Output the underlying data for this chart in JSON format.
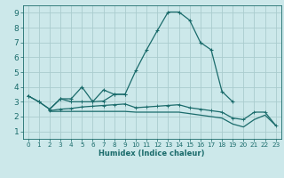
{
  "xlabel": "Humidex (Indice chaleur)",
  "xlim": [
    -0.5,
    23.5
  ],
  "ylim": [
    0.5,
    9.5
  ],
  "xticks": [
    0,
    1,
    2,
    3,
    4,
    5,
    6,
    7,
    8,
    9,
    10,
    11,
    12,
    13,
    14,
    15,
    16,
    17,
    18,
    19,
    20,
    21,
    22,
    23
  ],
  "yticks": [
    1,
    2,
    3,
    4,
    5,
    6,
    7,
    8,
    9
  ],
  "bg_color": "#cce8ea",
  "grid_color": "#aaccce",
  "line_color": "#1a6b6b",
  "series": [
    [
      3.4,
      3.0,
      2.5,
      3.2,
      3.2,
      4.0,
      3.0,
      3.8,
      3.5,
      3.5,
      5.1,
      6.5,
      7.8,
      9.05,
      9.05,
      8.5,
      7.0,
      6.5,
      3.7,
      3.0,
      null,
      null,
      null,
      null
    ],
    [
      3.4,
      3.0,
      2.5,
      3.2,
      3.0,
      3.0,
      3.0,
      3.05,
      3.5,
      3.5,
      null,
      null,
      null,
      null,
      null,
      null,
      null,
      null,
      null,
      null,
      null,
      null,
      null,
      null
    ],
    [
      null,
      null,
      2.4,
      2.5,
      2.55,
      2.65,
      2.7,
      2.75,
      2.8,
      2.85,
      2.6,
      2.65,
      2.7,
      2.75,
      2.8,
      2.6,
      2.5,
      2.4,
      2.3,
      1.9,
      1.8,
      2.3,
      2.3,
      1.4
    ],
    [
      null,
      null,
      2.35,
      2.35,
      2.35,
      2.35,
      2.35,
      2.35,
      2.35,
      2.35,
      2.3,
      2.3,
      2.3,
      2.3,
      2.3,
      2.2,
      2.1,
      2.0,
      1.9,
      1.5,
      1.3,
      1.8,
      2.1,
      1.4
    ]
  ]
}
